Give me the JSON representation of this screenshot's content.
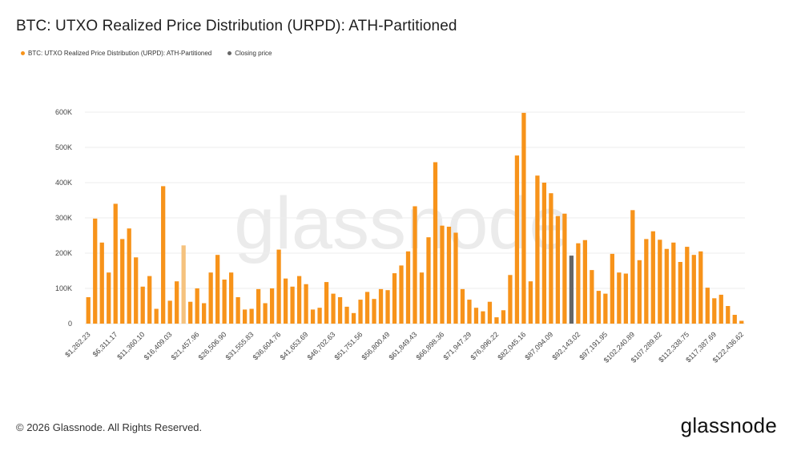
{
  "title": "BTC: UTXO Realized Price Distribution (URPD): ATH-Partitioned",
  "legend": [
    {
      "label": "BTC: UTXO Realized Price Distribution (URPD): ATH-Partitioned",
      "color": "#f7931a"
    },
    {
      "label": "Closing price",
      "color": "#666666"
    }
  ],
  "watermark": "glassnode",
  "footer": {
    "copyright": "© 2026 Glassnode. All Rights Reserved.",
    "brand": "glassnode"
  },
  "colors": {
    "bar": "#f7931a",
    "bar_light": "#f5c27e",
    "closing": "#666666",
    "grid": "#ececec",
    "axis_text": "#444444"
  },
  "chart_data": {
    "type": "bar",
    "ylim": [
      0,
      600000
    ],
    "yticks": [
      0,
      100000,
      200000,
      300000,
      400000,
      500000,
      600000
    ],
    "ytick_labels": [
      "0",
      "100K",
      "200K",
      "300K",
      "400K",
      "500K",
      "600K"
    ],
    "xtick_labels": [
      "$1,262.23",
      "$6,311.17",
      "$11,360.10",
      "$16,409.03",
      "$21,457.96",
      "$26,506.90",
      "$31,555.83",
      "$36,604.76",
      "$41,653.69",
      "$46,702.63",
      "$51,751.56",
      "$56,800.49",
      "$61,849.43",
      "$66,898.36",
      "$71,947.29",
      "$76,996.22",
      "$82,045.16",
      "$87,094.09",
      "$92,143.02",
      "$97,191.95",
      "$102,240.89",
      "$107,289.82",
      "$112,338.75",
      "$117,387.69",
      "$122,436.62"
    ],
    "closing_index": 71,
    "light_index": 14,
    "values": [
      75000,
      298000,
      230000,
      145000,
      340000,
      240000,
      270000,
      188000,
      105000,
      135000,
      42000,
      390000,
      65000,
      120000,
      222000,
      62000,
      100000,
      58000,
      145000,
      195000,
      125000,
      145000,
      75000,
      40000,
      42000,
      98000,
      58000,
      100000,
      210000,
      128000,
      105000,
      135000,
      112000,
      40000,
      45000,
      118000,
      85000,
      75000,
      48000,
      30000,
      68000,
      90000,
      70000,
      98000,
      95000,
      143000,
      165000,
      205000,
      333000,
      145000,
      245000,
      458000,
      278000,
      275000,
      258000,
      98000,
      68000,
      45000,
      35000,
      62000,
      18000,
      38000,
      138000,
      477000,
      598000,
      120000,
      420000,
      400000,
      370000,
      305000,
      312000,
      193000,
      228000,
      237000,
      152000,
      93000,
      85000,
      198000,
      145000,
      142000,
      322000,
      180000,
      240000,
      262000,
      238000,
      212000,
      230000,
      175000,
      218000,
      195000,
      205000,
      102000,
      72000,
      82000,
      50000,
      25000,
      8000
    ]
  }
}
